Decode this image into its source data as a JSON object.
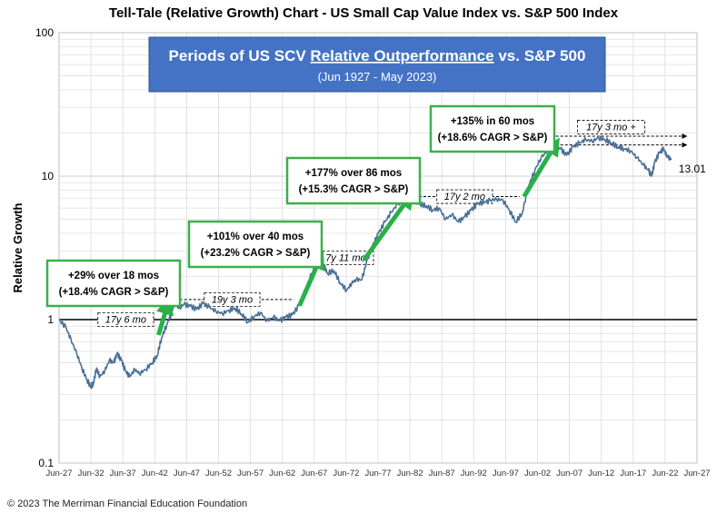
{
  "chart_data": {
    "type": "line",
    "title": "Tell-Tale (Relative Growth) Chart - US Small Cap Value Index vs. S&P 500 Index",
    "banner": {
      "title_prefix": "Periods of US SCV ",
      "title_underlined": "Relative Outperformance",
      "title_suffix": " vs. S&P 500",
      "subtitle": "(Jun 1927 - May 2023)"
    },
    "ylabel": "Relative Growth",
    "yscale": "log",
    "ylim": [
      0.1,
      100
    ],
    "y_ticks": [
      {
        "value": 0.1,
        "label": "0.1"
      },
      {
        "value": 1,
        "label": "1"
      },
      {
        "value": 10,
        "label": "10"
      },
      {
        "value": 100,
        "label": "100"
      }
    ],
    "xlim": [
      1927.42,
      2027.42
    ],
    "x_ticks": [
      "Jun-27",
      "Jun-32",
      "Jun-37",
      "Jun-42",
      "Jun-47",
      "Jun-52",
      "Jun-57",
      "Jun-62",
      "Jun-67",
      "Jun-72",
      "Jun-77",
      "Jun-82",
      "Jun-87",
      "Jun-92",
      "Jun-97",
      "Jun-02",
      "Jun-07",
      "Jun-12",
      "Jun-17",
      "Jun-22",
      "Jun-27"
    ],
    "grid": true,
    "series": [
      {
        "color": "#4a6f96",
        "points": [
          [
            1927.42,
            1.0
          ],
          [
            1928.5,
            0.88
          ],
          [
            1929.3,
            0.72
          ],
          [
            1930.2,
            0.58
          ],
          [
            1931.0,
            0.46
          ],
          [
            1931.8,
            0.38
          ],
          [
            1932.4,
            0.34
          ],
          [
            1932.8,
            0.36
          ],
          [
            1933.3,
            0.46
          ],
          [
            1933.8,
            0.4
          ],
          [
            1934.6,
            0.44
          ],
          [
            1935.3,
            0.52
          ],
          [
            1936.0,
            0.5
          ],
          [
            1936.5,
            0.58
          ],
          [
            1937.2,
            0.52
          ],
          [
            1937.8,
            0.44
          ],
          [
            1938.5,
            0.4
          ],
          [
            1939.3,
            0.45
          ],
          [
            1940.0,
            0.42
          ],
          [
            1941.0,
            0.45
          ],
          [
            1942.0,
            0.5
          ],
          [
            1942.8,
            0.56
          ],
          [
            1943.5,
            0.75
          ],
          [
            1944.3,
            0.92
          ],
          [
            1945.0,
            1.1
          ],
          [
            1945.5,
            1.3
          ],
          [
            1946.2,
            1.2
          ],
          [
            1947.0,
            1.28
          ],
          [
            1948.0,
            1.24
          ],
          [
            1949.0,
            1.18
          ],
          [
            1950.0,
            1.3
          ],
          [
            1951.0,
            1.22
          ],
          [
            1952.0,
            1.14
          ],
          [
            1953.0,
            1.1
          ],
          [
            1954.0,
            1.16
          ],
          [
            1955.0,
            1.2
          ],
          [
            1956.0,
            1.1
          ],
          [
            1957.0,
            0.96
          ],
          [
            1958.0,
            1.05
          ],
          [
            1959.0,
            1.12
          ],
          [
            1960.0,
            0.98
          ],
          [
            1961.0,
            1.04
          ],
          [
            1962.0,
            0.98
          ],
          [
            1963.0,
            1.04
          ],
          [
            1964.0,
            1.08
          ],
          [
            1965.0,
            1.25
          ],
          [
            1966.0,
            1.6
          ],
          [
            1967.0,
            2.1
          ],
          [
            1968.0,
            2.6
          ],
          [
            1968.9,
            2.4
          ],
          [
            1969.5,
            2.1
          ],
          [
            1970.5,
            2.2
          ],
          [
            1971.5,
            1.8
          ],
          [
            1972.5,
            1.6
          ],
          [
            1973.3,
            1.8
          ],
          [
            1974.0,
            1.9
          ],
          [
            1974.9,
            1.9
          ],
          [
            1975.7,
            2.6
          ],
          [
            1976.5,
            3.2
          ],
          [
            1977.5,
            4.0
          ],
          [
            1978.5,
            4.8
          ],
          [
            1979.5,
            5.6
          ],
          [
            1980.5,
            6.4
          ],
          [
            1982.1,
            7.0
          ],
          [
            1983.0,
            6.8
          ],
          [
            1984.0,
            6.4
          ],
          [
            1985.0,
            6.2
          ],
          [
            1986.0,
            5.8
          ],
          [
            1987.0,
            6.0
          ],
          [
            1988.0,
            5.0
          ],
          [
            1989.0,
            5.4
          ],
          [
            1990.0,
            4.8
          ],
          [
            1991.0,
            5.2
          ],
          [
            1992.0,
            5.8
          ],
          [
            1993.0,
            6.4
          ],
          [
            1994.0,
            6.6
          ],
          [
            1995.0,
            6.8
          ],
          [
            1996.0,
            6.9
          ],
          [
            1997.0,
            6.8
          ],
          [
            1998.0,
            5.8
          ],
          [
            1999.0,
            4.8
          ],
          [
            2000.0,
            5.5
          ],
          [
            2001.0,
            8.5
          ],
          [
            2002.0,
            11.0
          ],
          [
            2003.0,
            13.5
          ],
          [
            2004.0,
            15.0
          ],
          [
            2005.0,
            16.0
          ],
          [
            2006.0,
            15.5
          ],
          [
            2007.0,
            14.0
          ],
          [
            2008.0,
            16.0
          ],
          [
            2009.0,
            17.0
          ],
          [
            2010.0,
            18.0
          ],
          [
            2011.0,
            17.5
          ],
          [
            2012.0,
            18.5
          ],
          [
            2013.0,
            18.0
          ],
          [
            2014.0,
            17.0
          ],
          [
            2015.0,
            16.0
          ],
          [
            2016.0,
            15.5
          ],
          [
            2017.0,
            15.0
          ],
          [
            2018.0,
            13.5
          ],
          [
            2019.0,
            12.0
          ],
          [
            2019.8,
            11.0
          ],
          [
            2020.3,
            10.0
          ],
          [
            2020.8,
            12.5
          ],
          [
            2021.5,
            14.5
          ],
          [
            2022.2,
            15.5
          ],
          [
            2022.6,
            14.0
          ],
          [
            2023.0,
            13.5
          ],
          [
            2023.4,
            13.01
          ]
        ]
      }
    ],
    "end_label": "13.01",
    "reference_line": {
      "y": 1
    },
    "gain_periods": [
      {
        "line1": "+29% over 18 mos",
        "line2": "(+18.4% CAGR > S&P)",
        "x0": 1943.0,
        "y0": 0.78,
        "x1": 1944.5,
        "y1": 1.3
      },
      {
        "line1": "+101% over 40 mos",
        "line2": "(+23.2% CAGR > S&P)",
        "x0": 1965.1,
        "y0": 1.25,
        "x1": 1968.4,
        "y1": 2.7
      },
      {
        "line1": "+177% over 86 mos",
        "line2": "(+15.3% CAGR > S&P)",
        "x0": 1975.2,
        "y0": 2.6,
        "x1": 1982.4,
        "y1": 7.2
      },
      {
        "line1": "+135% in 60 mos",
        "line2": "(+18.6% CAGR > S&P)",
        "x0": 2000.3,
        "y0": 7.2,
        "x1": 2005.3,
        "y1": 16.8
      }
    ],
    "flat_periods": [
      {
        "label": "17y 6 mo",
        "x0": 1927.42,
        "x1": 1944.9,
        "y": 1.0
      },
      {
        "label": "19y 3 mo",
        "x0": 1944.9,
        "x1": 1964.2,
        "y": 1.38
      },
      {
        "label": "7y 11 mo",
        "x0": 1968.4,
        "x1": 1976.3,
        "y": 2.7
      },
      {
        "label": "17y 2 mo",
        "x0": 1982.4,
        "x1": 1999.6,
        "y": 7.2
      },
      {
        "label": "17y 3 mo +",
        "x0": 2005.3,
        "x1": 2022.6,
        "y": 19.0,
        "y2": 16.5
      }
    ]
  },
  "footer": "© 2023 The Merriman Financial Education Foundation",
  "colors": {
    "series": "#4a6f96",
    "banner": "#4472c4",
    "gain_box_border": "#3cb04a",
    "gain_arrow": "#2ab04a",
    "grid": "#d9d9d9"
  }
}
